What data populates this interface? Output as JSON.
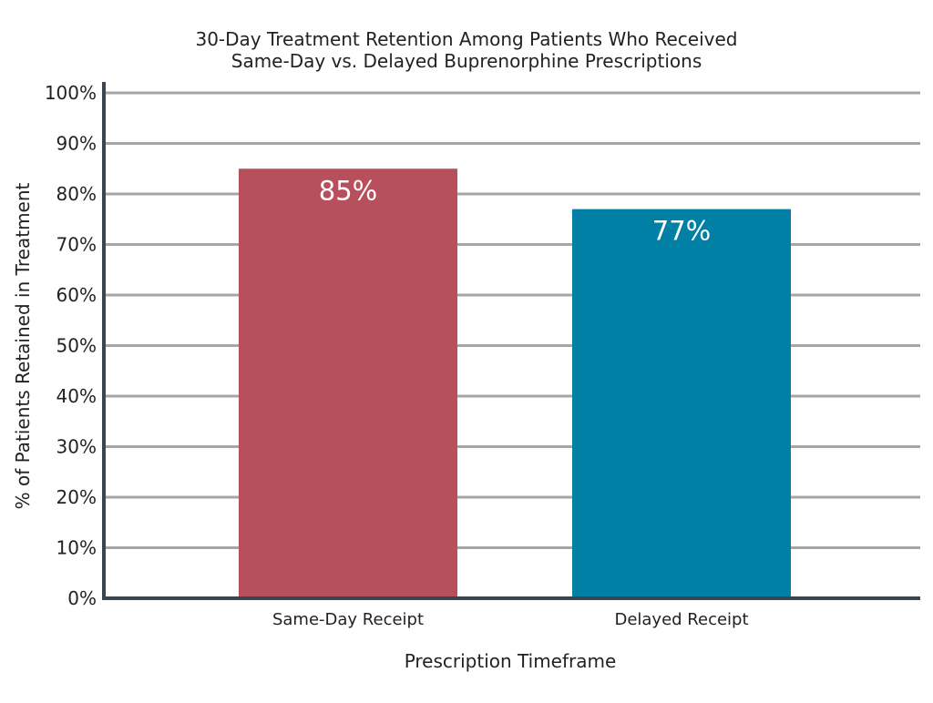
{
  "chart_data": {
    "type": "bar",
    "title": [
      "30-Day Treatment Retention Among Patients Who Received",
      "Same-Day vs. Delayed Buprenorphine Prescriptions"
    ],
    "xlabel": "Prescription Timeframe",
    "ylabel": "% of Patients Retained in Treatment",
    "categories": [
      "Same-Day Receipt",
      "Delayed Receipt"
    ],
    "values": [
      85,
      77
    ],
    "data_labels": [
      "85%",
      "77%"
    ],
    "ylim": [
      0,
      100
    ],
    "yticks": [
      0,
      10,
      20,
      30,
      40,
      50,
      60,
      70,
      80,
      90,
      100
    ],
    "ytick_labels": [
      "0%",
      "10%",
      "20%",
      "30%",
      "40%",
      "50%",
      "60%",
      "70%",
      "80%",
      "90%",
      "100%"
    ],
    "grid": true,
    "legend": "none",
    "colors": [
      "#B84F5C",
      "#0180A6"
    ],
    "axis_color": "#3A4550",
    "grid_color": "#A6A6A6"
  }
}
